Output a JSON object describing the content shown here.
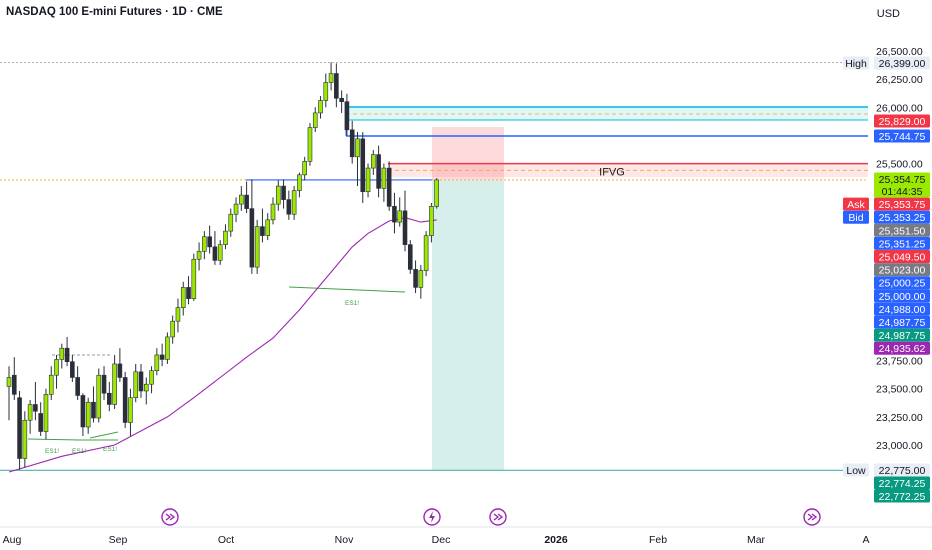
{
  "header": {
    "title": "NASDAQ 100 E-mini Futures · 1D · CME",
    "currency": "USD"
  },
  "chart_data": {
    "type": "candlestick",
    "y_axis_ticks": [
      "26,500.00",
      "26,250.00",
      "26,000.00",
      "25,500.00",
      "23,750.00",
      "23,500.00",
      "23,250.00",
      "23,000.00"
    ],
    "x_axis_ticks": [
      {
        "label": "Aug",
        "bold": false
      },
      {
        "label": "Sep",
        "bold": false
      },
      {
        "label": "Oct",
        "bold": false
      },
      {
        "label": "Nov",
        "bold": false
      },
      {
        "label": "Dec",
        "bold": false
      },
      {
        "label": "2026",
        "bold": true
      },
      {
        "label": "Feb",
        "bold": false
      },
      {
        "label": "Mar",
        "bold": false
      },
      {
        "label": "A",
        "bold": false
      }
    ],
    "candles": [
      {
        "o": 23520,
        "h": 23700,
        "l": 23220,
        "c": 23600
      },
      {
        "o": 23620,
        "h": 23780,
        "l": 23400,
        "c": 23450
      },
      {
        "o": 23420,
        "h": 23480,
        "l": 22780,
        "c": 22880
      },
      {
        "o": 22880,
        "h": 23300,
        "l": 22800,
        "c": 23220
      },
      {
        "o": 23220,
        "h": 23400,
        "l": 23100,
        "c": 23360
      },
      {
        "o": 23360,
        "h": 23560,
        "l": 23220,
        "c": 23300
      },
      {
        "o": 23280,
        "h": 23380,
        "l": 23080,
        "c": 23120
      },
      {
        "o": 23120,
        "h": 23500,
        "l": 23050,
        "c": 23450
      },
      {
        "o": 23450,
        "h": 23700,
        "l": 23400,
        "c": 23620
      },
      {
        "o": 23620,
        "h": 23800,
        "l": 23500,
        "c": 23760
      },
      {
        "o": 23760,
        "h": 23900,
        "l": 23680,
        "c": 23860
      },
      {
        "o": 23860,
        "h": 23960,
        "l": 23700,
        "c": 23740
      },
      {
        "o": 23740,
        "h": 23800,
        "l": 23560,
        "c": 23600
      },
      {
        "o": 23600,
        "h": 23700,
        "l": 23400,
        "c": 23440
      },
      {
        "o": 23440,
        "h": 23460,
        "l": 23080,
        "c": 23160
      },
      {
        "o": 23160,
        "h": 23420,
        "l": 23100,
        "c": 23380
      },
      {
        "o": 23380,
        "h": 23520,
        "l": 23200,
        "c": 23240
      },
      {
        "o": 23240,
        "h": 23680,
        "l": 23200,
        "c": 23620
      },
      {
        "o": 23620,
        "h": 23700,
        "l": 23400,
        "c": 23460
      },
      {
        "o": 23460,
        "h": 23560,
        "l": 23300,
        "c": 23360
      },
      {
        "o": 23360,
        "h": 23800,
        "l": 23320,
        "c": 23720
      },
      {
        "o": 23720,
        "h": 23860,
        "l": 23560,
        "c": 23600
      },
      {
        "o": 23600,
        "h": 23650,
        "l": 23150,
        "c": 23200
      },
      {
        "o": 23200,
        "h": 23500,
        "l": 23080,
        "c": 23420
      },
      {
        "o": 23420,
        "h": 23720,
        "l": 23380,
        "c": 23650
      },
      {
        "o": 23650,
        "h": 23720,
        "l": 23420,
        "c": 23480
      },
      {
        "o": 23480,
        "h": 23600,
        "l": 23360,
        "c": 23540
      },
      {
        "o": 23540,
        "h": 23700,
        "l": 23460,
        "c": 23660
      },
      {
        "o": 23660,
        "h": 23860,
        "l": 23620,
        "c": 23800
      },
      {
        "o": 23800,
        "h": 23900,
        "l": 23700,
        "c": 23760
      },
      {
        "o": 23760,
        "h": 24000,
        "l": 23720,
        "c": 23960
      },
      {
        "o": 23960,
        "h": 24150,
        "l": 23900,
        "c": 24100
      },
      {
        "o": 24100,
        "h": 24300,
        "l": 24000,
        "c": 24220
      },
      {
        "o": 24220,
        "h": 24450,
        "l": 24150,
        "c": 24400
      },
      {
        "o": 24400,
        "h": 24500,
        "l": 24250,
        "c": 24300
      },
      {
        "o": 24300,
        "h": 24700,
        "l": 24280,
        "c": 24650
      },
      {
        "o": 24650,
        "h": 24800,
        "l": 24550,
        "c": 24720
      },
      {
        "o": 24720,
        "h": 24900,
        "l": 24650,
        "c": 24850
      },
      {
        "o": 24850,
        "h": 24950,
        "l": 24700,
        "c": 24760
      },
      {
        "o": 24760,
        "h": 24900,
        "l": 24600,
        "c": 24640
      },
      {
        "o": 24640,
        "h": 24820,
        "l": 24600,
        "c": 24780
      },
      {
        "o": 24780,
        "h": 24960,
        "l": 24740,
        "c": 24900
      },
      {
        "o": 24900,
        "h": 25100,
        "l": 24850,
        "c": 25050
      },
      {
        "o": 25050,
        "h": 25200,
        "l": 24980,
        "c": 25140
      },
      {
        "o": 25140,
        "h": 25300,
        "l": 25080,
        "c": 25220
      },
      {
        "o": 25220,
        "h": 25340,
        "l": 25060,
        "c": 25100
      },
      {
        "o": 25100,
        "h": 25360,
        "l": 24520,
        "c": 24580
      },
      {
        "o": 24580,
        "h": 25000,
        "l": 24520,
        "c": 24940
      },
      {
        "o": 24940,
        "h": 25100,
        "l": 24800,
        "c": 24860
      },
      {
        "o": 24860,
        "h": 25060,
        "l": 24820,
        "c": 25000
      },
      {
        "o": 25000,
        "h": 25200,
        "l": 24960,
        "c": 25140
      },
      {
        "o": 25140,
        "h": 25350,
        "l": 25080,
        "c": 25300
      },
      {
        "o": 25300,
        "h": 25360,
        "l": 25100,
        "c": 25180
      },
      {
        "o": 25180,
        "h": 25260,
        "l": 25000,
        "c": 25050
      },
      {
        "o": 25050,
        "h": 25300,
        "l": 25000,
        "c": 25260
      },
      {
        "o": 25260,
        "h": 25420,
        "l": 25200,
        "c": 25400
      },
      {
        "o": 25400,
        "h": 25560,
        "l": 25350,
        "c": 25520
      },
      {
        "o": 25520,
        "h": 25860,
        "l": 25480,
        "c": 25820
      },
      {
        "o": 25820,
        "h": 26000,
        "l": 25780,
        "c": 25950
      },
      {
        "o": 25950,
        "h": 26100,
        "l": 25900,
        "c": 26060
      },
      {
        "o": 26060,
        "h": 26300,
        "l": 26000,
        "c": 26220
      },
      {
        "o": 26220,
        "h": 26399,
        "l": 26150,
        "c": 26300
      },
      {
        "o": 26300,
        "h": 26390,
        "l": 26000,
        "c": 26080
      },
      {
        "o": 26080,
        "h": 26150,
        "l": 25950,
        "c": 26050
      },
      {
        "o": 26050,
        "h": 26120,
        "l": 25750,
        "c": 25800
      },
      {
        "o": 25800,
        "h": 25880,
        "l": 25500,
        "c": 25560
      },
      {
        "o": 25560,
        "h": 25780,
        "l": 25300,
        "c": 25720
      },
      {
        "o": 25720,
        "h": 25780,
        "l": 25150,
        "c": 25250
      },
      {
        "o": 25250,
        "h": 25500,
        "l": 25200,
        "c": 25460
      },
      {
        "o": 25460,
        "h": 25620,
        "l": 25400,
        "c": 25580
      },
      {
        "o": 25580,
        "h": 25660,
        "l": 25200,
        "c": 25280
      },
      {
        "o": 25280,
        "h": 25500,
        "l": 25160,
        "c": 25460
      },
      {
        "o": 25460,
        "h": 25520,
        "l": 25080,
        "c": 25120
      },
      {
        "o": 25120,
        "h": 25240,
        "l": 24880,
        "c": 24980
      },
      {
        "o": 24980,
        "h": 25200,
        "l": 24940,
        "c": 25080
      },
      {
        "o": 25080,
        "h": 25260,
        "l": 24720,
        "c": 24780
      },
      {
        "o": 24780,
        "h": 24820,
        "l": 24520,
        "c": 24560
      },
      {
        "o": 24560,
        "h": 24640,
        "l": 24350,
        "c": 24400
      },
      {
        "o": 24400,
        "h": 24600,
        "l": 24300,
        "c": 24550
      },
      {
        "o": 24550,
        "h": 24900,
        "l": 24500,
        "c": 24860
      },
      {
        "o": 24860,
        "h": 25150,
        "l": 24800,
        "c": 25120
      },
      {
        "o": 25120,
        "h": 25370,
        "l": 25100,
        "c": 25355
      }
    ],
    "moving_average": [
      {
        "i": 0,
        "v": 22760
      },
      {
        "i": 10,
        "v": 22900
      },
      {
        "i": 20,
        "v": 23000
      },
      {
        "i": 30,
        "v": 23250
      },
      {
        "i": 35,
        "v": 23420
      },
      {
        "i": 40,
        "v": 23600
      },
      {
        "i": 45,
        "v": 23780
      },
      {
        "i": 50,
        "v": 23950
      },
      {
        "i": 55,
        "v": 24200
      },
      {
        "i": 60,
        "v": 24480
      },
      {
        "i": 65,
        "v": 24760
      },
      {
        "i": 68,
        "v": 24880
      },
      {
        "i": 72,
        "v": 24990
      },
      {
        "i": 75,
        "v": 25020
      },
      {
        "i": 78,
        "v": 24980
      },
      {
        "i": 81,
        "v": 25000
      }
    ],
    "annotations": {
      "ifvg_label": "IFVG",
      "es_label": "ES1!",
      "high_tag": "High",
      "low_tag": "Low"
    },
    "price_tags": [
      {
        "label": "26,399.00",
        "bg": "#e9eef6",
        "fg": "#131722",
        "value": 26399,
        "prefix_key": "high"
      },
      {
        "label": "25,829.00",
        "bg": "#f23645",
        "fg": "#ffffff",
        "value": 25829
      },
      {
        "label": "25,744.75",
        "bg": "#2962ff",
        "fg": "#ffffff",
        "value": 25744.75
      },
      {
        "label": "25,354.75",
        "bg": "#9be800",
        "fg": "#131722",
        "value": 25354.75
      },
      {
        "label": "01:44:35",
        "bg": "#9be800",
        "fg": "#131722"
      },
      {
        "label": "25,353.75",
        "bg": "#f23645",
        "fg": "#ffffff",
        "prefix_key": "ask"
      },
      {
        "label": "25,353.25",
        "bg": "#2962ff",
        "fg": "#ffffff",
        "prefix_key": "bid"
      },
      {
        "label": "25,351.50",
        "bg": "#787b86",
        "fg": "#ffffff"
      },
      {
        "label": "25,351.25",
        "bg": "#2962ff",
        "fg": "#ffffff"
      },
      {
        "label": "25,049.50",
        "bg": "#f23645",
        "fg": "#ffffff"
      },
      {
        "label": "25,023.00",
        "bg": "#787b86",
        "fg": "#ffffff"
      },
      {
        "label": "25,000.25",
        "bg": "#2962ff",
        "fg": "#ffffff"
      },
      {
        "label": "25,000.00",
        "bg": "#2962ff",
        "fg": "#ffffff"
      },
      {
        "label": "24,988.00",
        "bg": "#2962ff",
        "fg": "#ffffff"
      },
      {
        "label": "24,987.75",
        "bg": "#2962ff",
        "fg": "#ffffff"
      },
      {
        "label": "24,987.75",
        "bg": "#089981",
        "fg": "#ffffff"
      },
      {
        "label": "24,935.62",
        "bg": "#9c27b0",
        "fg": "#ffffff"
      },
      {
        "label": "22,775.00",
        "bg": "#e9eef6",
        "fg": "#131722",
        "value": 22775,
        "prefix_key": "low"
      },
      {
        "label": "22,774.25",
        "bg": "#089981",
        "fg": "#ffffff"
      },
      {
        "label": "22,772.25",
        "bg": "#089981",
        "fg": "#ffffff"
      }
    ],
    "tag_prefixes": {
      "high": "High",
      "low": "Low",
      "ask": "Ask",
      "bid": "Bid"
    },
    "colors": {
      "up": "#9be800",
      "down": "#2a2e39",
      "ma": "#9c27b0",
      "zone_red": "#f23645",
      "zone_blue": "#2962ff",
      "zone_cyan": "#00bcd4",
      "target_green": "#089981",
      "stop_red": "#f23645",
      "low_line": "#4db6ac"
    }
  }
}
